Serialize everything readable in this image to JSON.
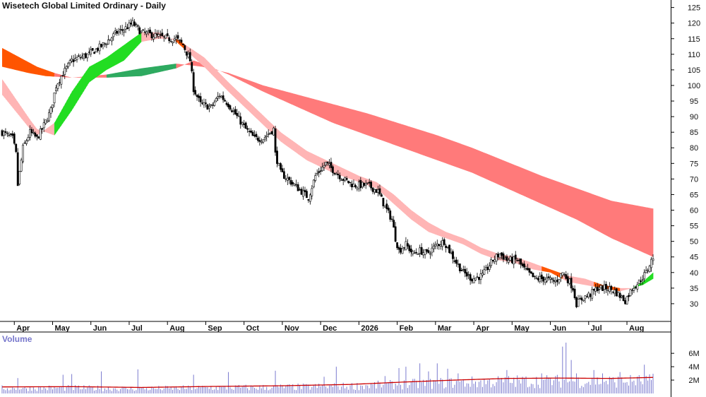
{
  "chart_data": {
    "type": "candlestick",
    "title": "Wisetech Global Limited Ordinary - Daily",
    "volume_title": "Volume",
    "y_ticks": [
      30,
      35,
      40,
      45,
      50,
      55,
      60,
      65,
      70,
      75,
      80,
      85,
      90,
      95,
      100,
      105,
      110,
      115,
      120,
      125
    ],
    "ylim": [
      25,
      126.5
    ],
    "volume_ticks": [
      {
        "value": 2000000,
        "label": "2M"
      },
      {
        "value": 4000000,
        "label": "4M"
      },
      {
        "value": 6000000,
        "label": "6M"
      }
    ],
    "volume_max": 7600000,
    "x_months": [
      "Apr",
      "May",
      "Jun",
      "Jul",
      "Aug",
      "Sep",
      "Oct",
      "Nov",
      "Dec",
      "2026",
      "Feb",
      "Mar",
      "Apr",
      "May",
      "Jun",
      "Jul",
      "Aug"
    ],
    "x_month_start_index": [
      7,
      29,
      51,
      73,
      95,
      117,
      139,
      161,
      183,
      205,
      227,
      249,
      271,
      293,
      315,
      337,
      359
    ],
    "n_bars": 375,
    "price_anchors": [
      [
        0,
        85
      ],
      [
        6,
        83
      ],
      [
        8,
        78
      ],
      [
        9,
        68
      ],
      [
        12,
        80
      ],
      [
        16,
        85
      ],
      [
        20,
        83
      ],
      [
        23,
        86
      ],
      [
        28,
        92
      ],
      [
        31,
        100
      ],
      [
        34,
        103
      ],
      [
        40,
        108
      ],
      [
        50,
        110
      ],
      [
        58,
        113
      ],
      [
        66,
        117
      ],
      [
        70,
        118
      ],
      [
        75,
        120
      ],
      [
        80,
        117
      ],
      [
        88,
        116
      ],
      [
        95,
        115
      ],
      [
        100,
        115
      ],
      [
        104,
        113
      ],
      [
        108,
        108
      ],
      [
        110,
        99
      ],
      [
        114,
        94
      ],
      [
        120,
        93
      ],
      [
        125,
        97
      ],
      [
        130,
        94
      ],
      [
        135,
        90
      ],
      [
        140,
        86
      ],
      [
        145,
        83
      ],
      [
        150,
        83
      ],
      [
        156,
        86
      ],
      [
        157,
        78
      ],
      [
        160,
        72
      ],
      [
        166,
        69
      ],
      [
        172,
        66
      ],
      [
        176,
        64
      ],
      [
        180,
        71
      ],
      [
        186,
        75
      ],
      [
        190,
        73
      ],
      [
        196,
        70
      ],
      [
        202,
        68
      ],
      [
        210,
        68
      ],
      [
        216,
        66
      ],
      [
        220,
        61
      ],
      [
        224,
        57
      ],
      [
        226,
        51
      ],
      [
        228,
        47
      ],
      [
        232,
        49
      ],
      [
        236,
        46
      ],
      [
        240,
        47
      ],
      [
        244,
        46
      ],
      [
        250,
        49
      ],
      [
        254,
        50
      ],
      [
        256,
        48
      ],
      [
        260,
        44
      ],
      [
        265,
        40
      ],
      [
        270,
        38
      ],
      [
        276,
        39
      ],
      [
        282,
        44
      ],
      [
        286,
        46
      ],
      [
        290,
        44
      ],
      [
        296,
        44
      ],
      [
        300,
        41
      ],
      [
        306,
        38
      ],
      [
        312,
        38
      ],
      [
        318,
        37
      ],
      [
        322,
        40
      ],
      [
        326,
        37
      ],
      [
        328,
        35
      ],
      [
        330,
        30
      ],
      [
        334,
        32
      ],
      [
        338,
        33
      ],
      [
        342,
        35
      ],
      [
        348,
        35
      ],
      [
        352,
        34
      ],
      [
        356,
        32
      ],
      [
        358,
        31
      ],
      [
        362,
        35
      ],
      [
        366,
        37
      ],
      [
        370,
        40
      ],
      [
        374,
        45
      ]
    ],
    "price_noise": 2.2,
    "price_spikes": [
      [
        9,
        68
      ]
    ],
    "ribbons": [
      {
        "name": "short-ribbon",
        "fast": [
          [
            0,
            97
          ],
          [
            16,
            86
          ],
          [
            20,
            84
          ],
          [
            30,
            88
          ],
          [
            40,
            98
          ],
          [
            50,
            106
          ],
          [
            60,
            109
          ],
          [
            70,
            113
          ],
          [
            80,
            117
          ],
          [
            90,
            117
          ],
          [
            100,
            114
          ],
          [
            108,
            110
          ],
          [
            116,
            106
          ],
          [
            130,
            98
          ],
          [
            145,
            90
          ],
          [
            160,
            82
          ],
          [
            175,
            76
          ],
          [
            190,
            72
          ],
          [
            205,
            69
          ],
          [
            215,
            67
          ],
          [
            225,
            62
          ],
          [
            235,
            57
          ],
          [
            245,
            53
          ],
          [
            255,
            51
          ],
          [
            265,
            49
          ],
          [
            275,
            46
          ],
          [
            285,
            44
          ],
          [
            295,
            43
          ],
          [
            305,
            41
          ],
          [
            315,
            40
          ],
          [
            325,
            37
          ],
          [
            335,
            36
          ],
          [
            345,
            35
          ],
          [
            355,
            34
          ],
          [
            362,
            35
          ],
          [
            368,
            37
          ],
          [
            374,
            40
          ]
        ],
        "slow": [
          [
            0,
            102
          ],
          [
            16,
            89
          ],
          [
            20,
            86
          ],
          [
            30,
            84
          ],
          [
            40,
            92
          ],
          [
            50,
            101
          ],
          [
            60,
            105
          ],
          [
            70,
            108
          ],
          [
            80,
            114
          ],
          [
            90,
            115
          ],
          [
            100,
            115
          ],
          [
            108,
            112
          ],
          [
            116,
            109
          ],
          [
            130,
            101
          ],
          [
            145,
            93
          ],
          [
            160,
            85
          ],
          [
            175,
            79
          ],
          [
            190,
            75
          ],
          [
            205,
            71
          ],
          [
            215,
            69
          ],
          [
            225,
            65
          ],
          [
            235,
            60
          ],
          [
            245,
            56
          ],
          [
            255,
            53
          ],
          [
            265,
            51
          ],
          [
            275,
            48
          ],
          [
            285,
            46
          ],
          [
            295,
            45
          ],
          [
            305,
            43
          ],
          [
            315,
            41
          ],
          [
            325,
            39
          ],
          [
            335,
            38
          ],
          [
            345,
            36
          ],
          [
            355,
            35
          ],
          [
            362,
            35
          ],
          [
            368,
            36
          ],
          [
            374,
            38
          ]
        ],
        "color_up": "#22dd22",
        "color_down": "#ff5500",
        "color_mixed": "#ffb5b5"
      },
      {
        "name": "long-ribbon",
        "fast": [
          [
            0,
            112
          ],
          [
            20,
            106
          ],
          [
            30,
            104
          ],
          [
            40,
            102.5
          ],
          [
            60,
            103.5
          ],
          [
            80,
            105.5
          ],
          [
            100,
            107
          ],
          [
            115,
            106
          ],
          [
            130,
            104
          ],
          [
            150,
            100
          ],
          [
            170,
            97
          ],
          [
            190,
            94
          ],
          [
            210,
            91
          ],
          [
            230,
            87.5
          ],
          [
            250,
            84
          ],
          [
            270,
            80
          ],
          [
            290,
            75.5
          ],
          [
            310,
            71
          ],
          [
            330,
            67
          ],
          [
            350,
            63
          ],
          [
            374,
            60.5
          ]
        ],
        "slow": [
          [
            0,
            106
          ],
          [
            15,
            104
          ],
          [
            25,
            103
          ],
          [
            40,
            102.5
          ],
          [
            60,
            102.5
          ],
          [
            80,
            103
          ],
          [
            100,
            105.5
          ],
          [
            110,
            108
          ],
          [
            115,
            107
          ],
          [
            130,
            103.5
          ],
          [
            150,
            98
          ],
          [
            170,
            93
          ],
          [
            190,
            88
          ],
          [
            210,
            84
          ],
          [
            230,
            80
          ],
          [
            250,
            76
          ],
          [
            270,
            72
          ],
          [
            290,
            67
          ],
          [
            310,
            62
          ],
          [
            330,
            57
          ],
          [
            350,
            51
          ],
          [
            374,
            45
          ]
        ],
        "color_up": "#2eaa60",
        "color_down": "#ff5500",
        "color_mixed": "#ff7a7a"
      }
    ],
    "volume_avg": [
      [
        0,
        980000
      ],
      [
        40,
        1020000
      ],
      [
        80,
        900000
      ],
      [
        120,
        1050000
      ],
      [
        160,
        1150000
      ],
      [
        200,
        1350000
      ],
      [
        230,
        1700000
      ],
      [
        260,
        2000000
      ],
      [
        290,
        2250000
      ],
      [
        320,
        2300000
      ],
      [
        350,
        2250000
      ],
      [
        374,
        2400000
      ]
    ],
    "volume_base": 700000,
    "volume_spikes": [
      [
        9,
        2300000
      ],
      [
        35,
        2800000
      ],
      [
        40,
        2900000
      ],
      [
        57,
        3300000
      ],
      [
        78,
        3600000
      ],
      [
        110,
        2800000
      ],
      [
        130,
        3200000
      ],
      [
        157,
        3400000
      ],
      [
        185,
        2500000
      ],
      [
        192,
        4000000
      ],
      [
        220,
        2600000
      ],
      [
        228,
        3800000
      ],
      [
        232,
        4000000
      ],
      [
        240,
        4500000
      ],
      [
        245,
        3300000
      ],
      [
        250,
        4500000
      ],
      [
        256,
        3700000
      ],
      [
        262,
        3000000
      ],
      [
        290,
        3500000
      ],
      [
        310,
        3000000
      ],
      [
        322,
        7000000
      ],
      [
        324,
        7600000
      ],
      [
        327,
        5000000
      ],
      [
        330,
        3000000
      ],
      [
        340,
        3500000
      ],
      [
        345,
        3000000
      ],
      [
        355,
        3200000
      ],
      [
        369,
        4300000
      ]
    ],
    "colors": {
      "up_candle": "#ffffff",
      "down_candle": "#000000",
      "volume_bar": "#7b7bcf",
      "volume_avg": "#cc0000",
      "axis": "#000000"
    }
  }
}
